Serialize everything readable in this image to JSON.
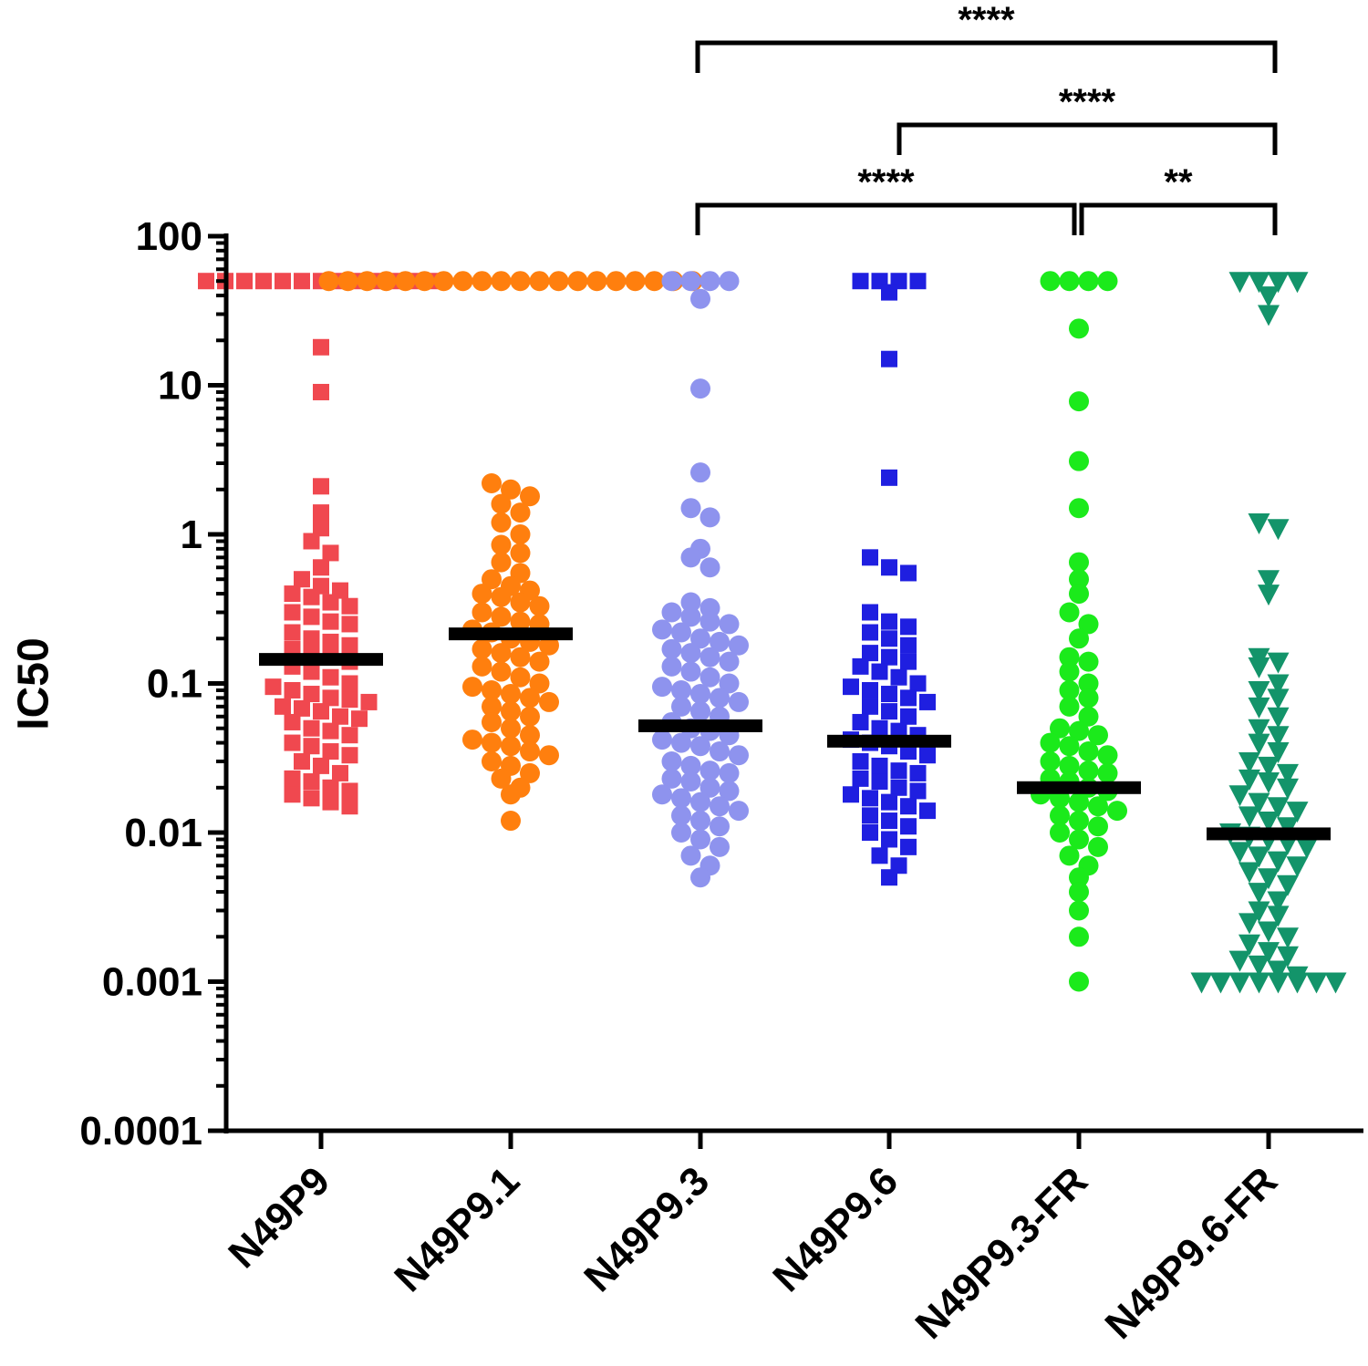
{
  "chart_data": {
    "type": "scatter",
    "subtype": "dot-plot-with-median",
    "title": "",
    "xlabel": "",
    "ylabel": "IC50",
    "yscale": "log",
    "ylim": [
      0.0001,
      100
    ],
    "yticks": [
      {
        "value": 100,
        "label": "100"
      },
      {
        "value": 10,
        "label": "10"
      },
      {
        "value": 1,
        "label": "1"
      },
      {
        "value": 0.1,
        "label": "0.1"
      },
      {
        "value": 0.01,
        "label": "0.01"
      },
      {
        "value": 0.001,
        "label": "0.001"
      },
      {
        "value": 0.0001,
        "label": "0.0001"
      }
    ],
    "categories": [
      "N49P9",
      "N49P9.1",
      "N49P9.3",
      "N49P9.6",
      "N49P9.3-FR",
      "N49P9.6-FR"
    ],
    "series": [
      {
        "name": "N49P9",
        "color": "#f0484f",
        "marker": "square",
        "median": 0.145,
        "values": [
          50,
          50,
          50,
          50,
          50,
          50,
          50,
          50,
          50,
          50,
          50,
          50,
          50,
          18,
          9,
          2.1,
          1.4,
          1.1,
          0.9,
          0.75,
          0.6,
          0.5,
          0.45,
          0.42,
          0.4,
          0.38,
          0.35,
          0.33,
          0.3,
          0.28,
          0.26,
          0.25,
          0.22,
          0.2,
          0.19,
          0.18,
          0.17,
          0.16,
          0.15,
          0.14,
          0.13,
          0.12,
          0.11,
          0.1,
          0.095,
          0.09,
          0.085,
          0.08,
          0.078,
          0.075,
          0.07,
          0.068,
          0.065,
          0.06,
          0.058,
          0.055,
          0.05,
          0.048,
          0.045,
          0.04,
          0.038,
          0.035,
          0.033,
          0.03,
          0.028,
          0.025,
          0.023,
          0.022,
          0.02,
          0.019,
          0.018,
          0.017,
          0.016,
          0.015
        ]
      },
      {
        "name": "N49P9.1",
        "color": "#ff7f0e",
        "marker": "circle",
        "median": 0.215,
        "values": [
          50,
          50,
          50,
          50,
          50,
          50,
          50,
          50,
          50,
          50,
          50,
          50,
          50,
          50,
          50,
          50,
          50,
          50,
          50,
          50,
          2.2,
          2.0,
          1.8,
          1.6,
          1.4,
          1.2,
          1.0,
          0.85,
          0.75,
          0.65,
          0.55,
          0.5,
          0.45,
          0.42,
          0.4,
          0.38,
          0.35,
          0.33,
          0.3,
          0.28,
          0.26,
          0.25,
          0.23,
          0.22,
          0.2,
          0.19,
          0.18,
          0.17,
          0.16,
          0.15,
          0.14,
          0.13,
          0.12,
          0.11,
          0.1,
          0.095,
          0.09,
          0.085,
          0.08,
          0.075,
          0.07,
          0.065,
          0.06,
          0.055,
          0.05,
          0.045,
          0.042,
          0.04,
          0.038,
          0.035,
          0.033,
          0.03,
          0.028,
          0.025,
          0.023,
          0.02,
          0.018,
          0.012
        ]
      },
      {
        "name": "N49P9.3",
        "color": "#8e93ee",
        "marker": "circle",
        "median": 0.052,
        "values": [
          50,
          50,
          50,
          50,
          38,
          9.5,
          2.6,
          1.5,
          1.3,
          0.8,
          0.7,
          0.6,
          0.35,
          0.32,
          0.3,
          0.28,
          0.26,
          0.25,
          0.23,
          0.22,
          0.2,
          0.19,
          0.18,
          0.17,
          0.16,
          0.15,
          0.14,
          0.13,
          0.12,
          0.11,
          0.1,
          0.095,
          0.09,
          0.085,
          0.08,
          0.075,
          0.07,
          0.065,
          0.06,
          0.055,
          0.05,
          0.048,
          0.045,
          0.042,
          0.04,
          0.038,
          0.035,
          0.033,
          0.03,
          0.028,
          0.026,
          0.025,
          0.023,
          0.022,
          0.02,
          0.019,
          0.018,
          0.017,
          0.016,
          0.015,
          0.014,
          0.013,
          0.012,
          0.011,
          0.01,
          0.009,
          0.008,
          0.007,
          0.006,
          0.005
        ]
      },
      {
        "name": "N49P9.6",
        "color": "#1f1fe0",
        "marker": "square",
        "median": 0.041,
        "values": [
          50,
          50,
          50,
          50,
          42,
          15,
          2.4,
          0.7,
          0.6,
          0.55,
          0.3,
          0.26,
          0.24,
          0.22,
          0.2,
          0.18,
          0.16,
          0.15,
          0.14,
          0.13,
          0.12,
          0.11,
          0.1,
          0.095,
          0.09,
          0.085,
          0.08,
          0.075,
          0.07,
          0.065,
          0.06,
          0.055,
          0.05,
          0.048,
          0.045,
          0.042,
          0.04,
          0.038,
          0.035,
          0.033,
          0.03,
          0.028,
          0.026,
          0.025,
          0.023,
          0.022,
          0.02,
          0.019,
          0.018,
          0.017,
          0.016,
          0.015,
          0.014,
          0.013,
          0.012,
          0.011,
          0.01,
          0.009,
          0.008,
          0.007,
          0.006,
          0.005
        ]
      },
      {
        "name": "N49P9.3-FR",
        "color": "#1bea1b",
        "marker": "circle",
        "median": 0.02,
        "values": [
          50,
          50,
          50,
          50,
          24,
          7.8,
          3.1,
          1.5,
          0.65,
          0.5,
          0.4,
          0.3,
          0.25,
          0.2,
          0.15,
          0.14,
          0.12,
          0.1,
          0.09,
          0.08,
          0.07,
          0.06,
          0.05,
          0.048,
          0.045,
          0.04,
          0.038,
          0.035,
          0.033,
          0.03,
          0.028,
          0.026,
          0.025,
          0.023,
          0.022,
          0.02,
          0.019,
          0.018,
          0.017,
          0.016,
          0.015,
          0.014,
          0.013,
          0.012,
          0.011,
          0.01,
          0.009,
          0.008,
          0.007,
          0.006,
          0.005,
          0.004,
          0.003,
          0.002,
          0.001
        ]
      },
      {
        "name": "N49P9.6-FR",
        "color": "#13946a",
        "marker": "triangle-down",
        "median": 0.0098,
        "values": [
          50,
          50,
          50,
          50,
          40,
          30,
          1.2,
          1.1,
          0.5,
          0.4,
          0.15,
          0.14,
          0.13,
          0.1,
          0.09,
          0.08,
          0.07,
          0.06,
          0.05,
          0.045,
          0.04,
          0.035,
          0.03,
          0.028,
          0.025,
          0.023,
          0.022,
          0.02,
          0.018,
          0.016,
          0.015,
          0.014,
          0.013,
          0.012,
          0.011,
          0.01,
          0.0095,
          0.009,
          0.0085,
          0.008,
          0.0075,
          0.007,
          0.0065,
          0.006,
          0.0055,
          0.005,
          0.0045,
          0.004,
          0.0035,
          0.003,
          0.0028,
          0.0025,
          0.0022,
          0.002,
          0.0018,
          0.0016,
          0.0015,
          0.0014,
          0.0013,
          0.0012,
          0.0011,
          0.001,
          0.001,
          0.001,
          0.001,
          0.001,
          0.001,
          0.001,
          0.001
        ]
      }
    ],
    "significance": [
      {
        "from": "N49P9.3",
        "to": "N49P9.6-FR",
        "label": "****"
      },
      {
        "from": "N49P9.6",
        "to": "N49P9.6-FR",
        "label": "****"
      },
      {
        "from": "N49P9.3",
        "to": "N49P9.3-FR",
        "label": "****"
      },
      {
        "from": "N49P9.3-FR",
        "to": "N49P9.6-FR",
        "label": "**"
      }
    ]
  }
}
